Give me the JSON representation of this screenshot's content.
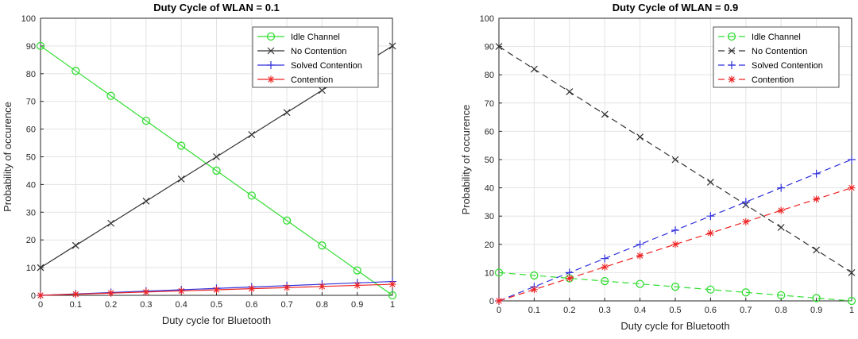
{
  "chart_data": [
    {
      "type": "line",
      "title": "Duty Cycle of WLAN = 0.1",
      "xlabel": "Duty cycle for Bluetooth",
      "ylabel": "Probability of occurence",
      "xlim": [
        0,
        1
      ],
      "ylim": [
        0,
        100
      ],
      "xticks": [
        "0",
        "0.1",
        "0.2",
        "0.3",
        "0.4",
        "0.5",
        "0.6",
        "0.7",
        "0.8",
        "0.9",
        "1"
      ],
      "yticks": [
        "0",
        "10",
        "20",
        "30",
        "40",
        "50",
        "60",
        "70",
        "80",
        "90",
        "100"
      ],
      "grid": true,
      "legend_position": "top-right",
      "x": [
        0,
        0.1,
        0.2,
        0.3,
        0.4,
        0.5,
        0.6,
        0.7,
        0.8,
        0.9,
        1
      ],
      "series": [
        {
          "name": "Idle Channel",
          "color": "#33dd33",
          "marker": "circle",
          "dash": "solid",
          "values": [
            90,
            81,
            72,
            63,
            54,
            45,
            36,
            27,
            18,
            9,
            0
          ]
        },
        {
          "name": "No Contention",
          "color": "#333333",
          "marker": "x",
          "dash": "solid",
          "values": [
            10,
            18,
            26,
            34,
            42,
            50,
            58,
            66,
            74,
            82,
            90
          ]
        },
        {
          "name": "Solved Contention",
          "color": "#3333dd",
          "marker": "plus",
          "dash": "solid",
          "values": [
            0,
            0.5,
            1,
            1.5,
            2,
            2.5,
            3,
            3.5,
            4,
            4.5,
            5
          ]
        },
        {
          "name": "Contention",
          "color": "#ee2222",
          "marker": "star",
          "dash": "solid",
          "values": [
            0,
            0.4,
            0.8,
            1.2,
            1.6,
            2.0,
            2.4,
            2.8,
            3.2,
            3.6,
            4
          ]
        }
      ]
    },
    {
      "type": "line",
      "title": "Duty Cycle of WLAN = 0.9",
      "xlabel": "Duty cycle for Bluetooth",
      "ylabel": "Probability of occurence",
      "xlim": [
        0,
        1
      ],
      "ylim": [
        0,
        100
      ],
      "xticks": [
        "0",
        "0.1",
        "0.2",
        "0.3",
        "0.4",
        "0.5",
        "0.6",
        "0.7",
        "0.8",
        "0.9",
        "1"
      ],
      "yticks": [
        "0",
        "10",
        "20",
        "30",
        "40",
        "50",
        "60",
        "70",
        "80",
        "90",
        "100"
      ],
      "grid": true,
      "legend_position": "top-right",
      "x": [
        0,
        0.1,
        0.2,
        0.3,
        0.4,
        0.5,
        0.6,
        0.7,
        0.8,
        0.9,
        1
      ],
      "series": [
        {
          "name": "Idle Channel",
          "color": "#33dd33",
          "marker": "circle",
          "dash": "dashed",
          "values": [
            10,
            9,
            8,
            7,
            6,
            5,
            4,
            3,
            2,
            1,
            0
          ]
        },
        {
          "name": "No Contention",
          "color": "#333333",
          "marker": "x",
          "dash": "dashed",
          "values": [
            90,
            82,
            74,
            66,
            58,
            50,
            42,
            34,
            26,
            18,
            10
          ]
        },
        {
          "name": "Solved Contention",
          "color": "#3333dd",
          "marker": "plus",
          "dash": "dashed",
          "values": [
            0,
            5,
            10,
            15,
            20,
            25,
            30,
            35,
            40,
            45,
            50
          ]
        },
        {
          "name": "Contention",
          "color": "#ee2222",
          "marker": "star",
          "dash": "dashed",
          "values": [
            0,
            4,
            8,
            12,
            16,
            20,
            24,
            28,
            32,
            36,
            40
          ]
        }
      ]
    }
  ]
}
